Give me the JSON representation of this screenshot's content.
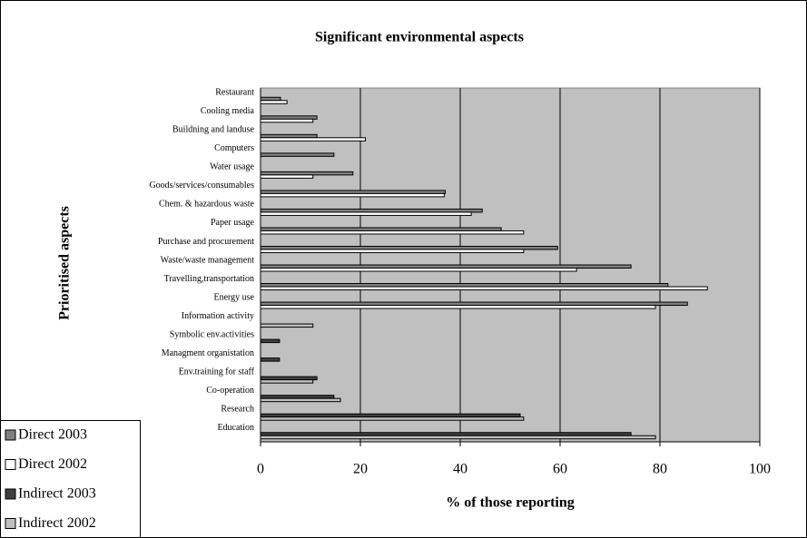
{
  "chart_data": {
    "type": "hbar",
    "title": "Significant environmental aspects",
    "x_label": "% of those reporting",
    "y_label": "Prioritised aspects",
    "categories": [
      "Restaurant",
      "Cooling media",
      "Buildning and landuse",
      "Computers",
      "Water usage",
      "Goods/services/consumables",
      "Chem. & hazardous waste",
      "Paper usage",
      "Purchase and procurement",
      "Waste/waste management",
      "Travelling,transportation",
      "Energy use",
      "Information activity",
      "Symbolic env.activities",
      "Managment organistation",
      "Env.training for staff",
      "Co-operation",
      "Research",
      "Education"
    ],
    "series": [
      {
        "name": "Direct 2003",
        "color": "#808080",
        "values": [
          4,
          11.3,
          11.3,
          14.7,
          18.5,
          37,
          44.4,
          48.2,
          59.5,
          74.2,
          81.6,
          85.5,
          null,
          null,
          null,
          null,
          null,
          null,
          null
        ]
      },
      {
        "name": "Direct 2002",
        "color": "#ffffff",
        "values": [
          5.3,
          10.5,
          21,
          null,
          10.5,
          36.8,
          42.2,
          52.7,
          52.7,
          63.3,
          89.5,
          79.1,
          null,
          null,
          null,
          null,
          null,
          null,
          null
        ]
      },
      {
        "name": "Indirect 2003",
        "color": "#404040",
        "values": [
          null,
          null,
          null,
          null,
          null,
          null,
          null,
          null,
          null,
          null,
          null,
          null,
          null,
          3.8,
          3.8,
          11.3,
          14.7,
          52,
          74.2
        ]
      },
      {
        "name": "Indirect 2002",
        "color": "#c0c0c0",
        "values": [
          null,
          null,
          null,
          null,
          null,
          null,
          null,
          null,
          null,
          null,
          null,
          null,
          10.5,
          null,
          null,
          10.5,
          16,
          52.7,
          79.1
        ]
      }
    ],
    "xlim": [
      0,
      100
    ],
    "xticks": [
      0,
      20,
      40,
      60,
      80,
      100
    ],
    "grid": true,
    "legend": "bottom-left"
  }
}
